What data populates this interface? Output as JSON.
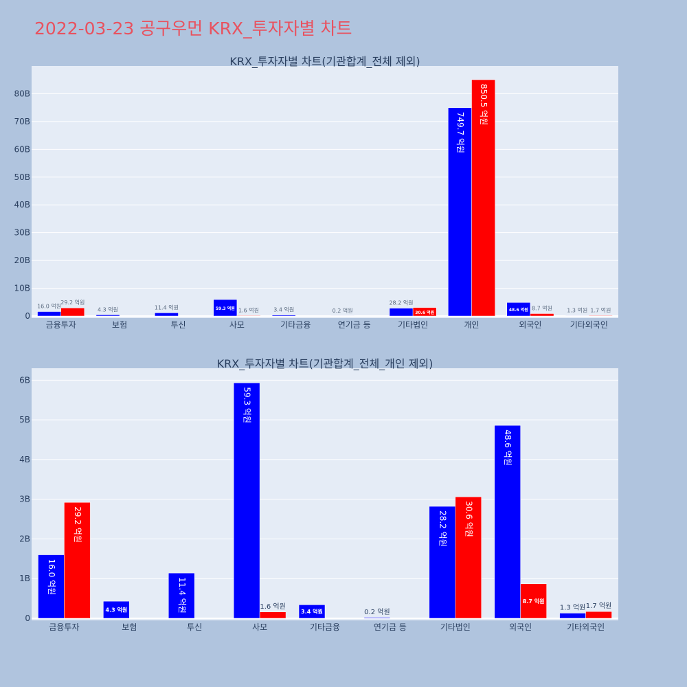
{
  "page_title": "2022-03-23 공구우먼 KRX_투자자별 차트",
  "colors": {
    "series_a": "#0000ff",
    "series_b": "#ff0000",
    "plot_bg": "#e5ecf6",
    "page_bg": "#b0c4de",
    "title": "#e8525f"
  },
  "chart_data": [
    {
      "type": "bar",
      "title": "KRX_투자자별 차트(기관합계_전체 제외)",
      "categories": [
        "금융투자",
        "보험",
        "투신",
        "사모",
        "기타금융",
        "연기금 등",
        "기타법인",
        "개인",
        "외국인",
        "기타외국인"
      ],
      "series": [
        {
          "values": [
            1.6,
            0.43,
            1.14,
            5.93,
            0.34,
            0.02,
            2.82,
            74.97,
            4.86,
            0.13
          ],
          "labels": [
            "16.0 억원",
            "4.3 억원",
            "11.4 억원",
            "59.3 억원",
            "3.4 억원",
            "0.2 억원",
            "28.2 억원",
            "749.7 억원",
            "48.6 억원",
            "1.3 억원"
          ]
        },
        {
          "values": [
            2.92,
            0,
            0,
            0.16,
            0,
            0,
            3.06,
            85.05,
            0.87,
            0.17
          ],
          "labels": [
            "29.2 억원",
            "",
            "",
            "1.6 억원",
            "",
            "",
            "30.6 억원",
            "850.5 억원",
            "8.7 억원",
            "1.7 억원"
          ]
        }
      ],
      "ylim": [
        0,
        90
      ],
      "yticks": [
        0,
        10,
        20,
        30,
        40,
        50,
        60,
        70,
        80
      ],
      "ytick_labels": [
        "0",
        "10B",
        "20B",
        "30B",
        "40B",
        "50B",
        "60B",
        "70B",
        "80B"
      ],
      "grid": true,
      "legend": "none"
    },
    {
      "type": "bar",
      "title": "KRX_투자자별 차트(기관합계_전체_개인 제외)",
      "categories": [
        "금융투자",
        "보험",
        "투신",
        "사모",
        "기타금융",
        "연기금 등",
        "기타법인",
        "외국인",
        "기타외국인"
      ],
      "series": [
        {
          "values": [
            1.6,
            0.43,
            1.14,
            5.93,
            0.34,
            0.02,
            2.82,
            4.86,
            0.13
          ],
          "labels": [
            "16.0 억원",
            "4.3 억원",
            "11.4 억원",
            "59.3 억원",
            "3.4 억원",
            "0.2 억원",
            "28.2 억원",
            "48.6 억원",
            "1.3 억원"
          ]
        },
        {
          "values": [
            2.92,
            0,
            0,
            0.16,
            0,
            0,
            3.06,
            0.87,
            0.17
          ],
          "labels": [
            "29.2 억원",
            "",
            "",
            "1.6 억원",
            "",
            "",
            "30.6 억원",
            "8.7 억원",
            "1.7 억원"
          ]
        }
      ],
      "ylim": [
        0,
        6.3
      ],
      "yticks": [
        0,
        1,
        2,
        3,
        4,
        5,
        6
      ],
      "ytick_labels": [
        "0",
        "1B",
        "2B",
        "3B",
        "4B",
        "5B",
        "6B"
      ],
      "grid": true,
      "legend": "none"
    }
  ]
}
